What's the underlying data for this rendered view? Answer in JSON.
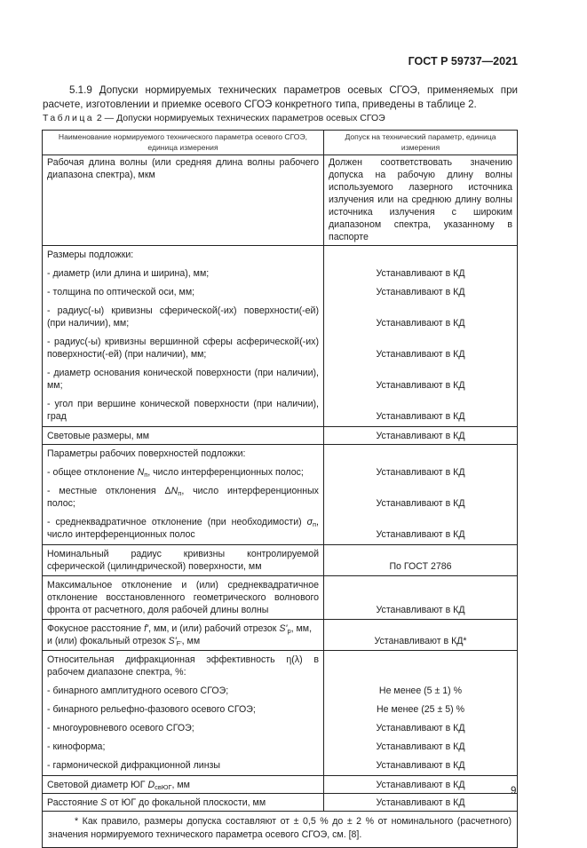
{
  "header": {
    "doc_id": "ГОСТ Р 59737—2021"
  },
  "intro": "5.1.9 Допуски нормируемых технических параметров осевых СГОЭ, применяемых при расчете, изготовлении и приемке осевого СГОЭ конкретного типа, приведены в таблице 2.",
  "caption": {
    "label": "Таблица",
    "rest": " 2 — Допуски нормируемых технических параметров осевых СГОЭ"
  },
  "table": {
    "col1": "Наименование нормируемого технического параметра осевого СГОЭ, единица измерения",
    "col2": "Допуск на технический параметр, единица измерения",
    "r1": {
      "l": "Рабочая длина волны (или средняя длина волны рабочего диапазона спектра), мкм",
      "r": "Должен соответствовать значению допуска на рабочую длину волны используемого лазерного источника излучения или на среднюю длину волны источника излучения с широким диапазоном спектра, указанному в паспорте"
    },
    "r2": {
      "head": "Размеры подложки:",
      "items": [
        {
          "l": "- диаметр (или длина и ширина), мм;",
          "r": "Устанавливают в КД"
        },
        {
          "l": "- толщина по оптической оси, мм;",
          "r": "Устанавливают в КД"
        },
        {
          "l": "- радиус(-ы) кривизны сферической(-их) поверхности(-ей) (при наличии), мм;",
          "r": "Устанавливают в КД"
        },
        {
          "l": "- радиус(-ы) кривизны вершинной сферы асферической(-их) поверхности(-ей) (при наличии), мм;",
          "r": "Устанавливают в КД"
        },
        {
          "l": "- диаметр основания конической поверхности (при наличии), мм;",
          "r": "Устанавливают в КД"
        },
        {
          "l": "- угол при вершине конической поверхности (при наличии), град",
          "r": "Устанавливают в КД"
        }
      ]
    },
    "r3": {
      "l": "Световые размеры, мм",
      "r": "Устанавливают в КД"
    },
    "r4": {
      "head": "Параметры рабочих поверхностей подложки:",
      "a": {
        "pre": "- общее отклонение ",
        "sym": "N",
        "sub": "п",
        "post": ", число интерференционных полос;",
        "r": "Устанавливают в КД"
      },
      "b": {
        "pre": "- местные отклонения Δ",
        "sym": "N",
        "sub": "п",
        "post": ", число интерференционных полос;",
        "r": "Устанавливают в КД"
      },
      "c": {
        "pre": "- среднеквадратичное отклонение (при необходимости) ",
        "sym": "σ",
        "sub": "п",
        "post": ", число интерференционных полос",
        "r": "Устанавливают в КД"
      }
    },
    "r5": {
      "l": "Номинальный радиус кривизны контролируемой сферической (цилиндрической) поверхности, мм",
      "r": "По ГОСТ 2786"
    },
    "r6": {
      "l": "Максимальное отклонение и (или) среднеквадратичное отклонение восстановленного геометрического волнового фронта от расчетного, доля рабочей длины волны",
      "r": "Устанавливают в КД"
    },
    "r7": {
      "p1": "Фокусное расстояние ",
      "s1": "f'",
      "p2": ", мм, и (или) рабочий отрезок ",
      "s2": "S'",
      "sub2": "p",
      "p3": ", мм,",
      "p4": "и (или) фокальный отрезок ",
      "s3": "S'",
      "sub3": "F'",
      "p5": ", мм",
      "r": "Устанавливают в КД*"
    },
    "r8": {
      "head": "Относительная дифракционная эффективность η(λ) в рабочем диапазоне спектра, %:",
      "items": [
        {
          "l": "- бинарного амплитудного осевого СГОЭ;",
          "r": "Не менее (5 ± 1) %"
        },
        {
          "l": "- бинарного рельефно-фазового осевого СГОЭ;",
          "r": "Не менее (25 ± 5) %"
        },
        {
          "l": "- многоуровневого осевого СГОЭ;",
          "r": "Устанавливают в КД"
        },
        {
          "l": "- киноформа;",
          "r": "Устанавливают в КД"
        },
        {
          "l": "- гармонической дифракционной линзы",
          "r": "Устанавливают в КД"
        }
      ]
    },
    "r9": {
      "pre": "Световой диаметр ЮГ ",
      "sym": "D",
      "sub": "свЮГ",
      "post": ", мм",
      "r": "Устанавливают в КД"
    },
    "r10": {
      "pre": "Расстояние ",
      "sym": "S",
      "post": " от ЮГ до фокальной плоскости, мм",
      "r": "Устанавливают в КД"
    },
    "footnote": "* Как правило, размеры допуска составляют от ± 0,5 % до ± 2 % от номинального (расчетного) значения нормируемого технического параметра осевого СГОЭ, см. [8]."
  },
  "page_number": "9"
}
